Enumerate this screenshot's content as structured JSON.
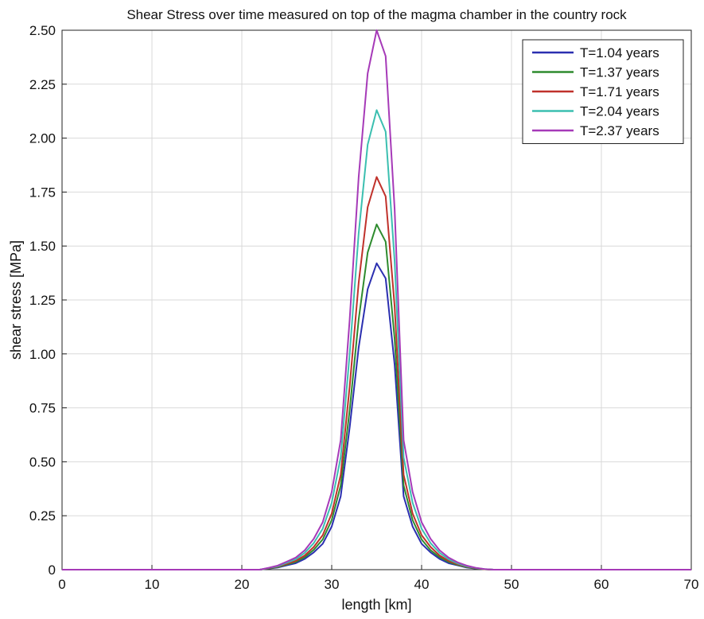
{
  "chart_data": {
    "type": "line",
    "title": "Shear Stress over time measured on top of the magma chamber in the country rock",
    "xlabel": "length [km]",
    "ylabel": "shear stress [MPa]",
    "xlim": [
      0,
      70
    ],
    "ylim": [
      0,
      2.5
    ],
    "xticks": [
      "0",
      "10",
      "20",
      "30",
      "40",
      "50",
      "60",
      "70"
    ],
    "yticks": [
      "0",
      "0.25",
      "0.50",
      "0.75",
      "1.00",
      "1.25",
      "1.50",
      "1.75",
      "2.00",
      "2.25",
      "2.50"
    ],
    "grid": true,
    "legend_position": "top-right",
    "x": [
      0,
      10,
      20,
      22,
      23,
      24,
      25,
      26,
      27,
      28,
      29,
      30,
      31,
      32,
      33,
      34,
      35,
      36,
      37,
      38,
      39,
      40,
      41,
      42,
      43,
      44,
      45,
      46,
      47,
      48,
      50,
      60,
      70
    ],
    "series": [
      {
        "name": "T=1.04 years",
        "color": "#2b2fb0",
        "values": [
          0,
          0,
          0,
          0,
          0.005,
          0.01,
          0.02,
          0.03,
          0.05,
          0.08,
          0.12,
          0.2,
          0.34,
          0.66,
          1.03,
          1.3,
          1.42,
          1.35,
          0.95,
          0.34,
          0.2,
          0.12,
          0.08,
          0.05,
          0.03,
          0.02,
          0.01,
          0.005,
          0.002,
          0,
          0,
          0,
          0
        ]
      },
      {
        "name": "T=1.37 years",
        "color": "#2e8b2e",
        "values": [
          0,
          0,
          0,
          0,
          0.006,
          0.012,
          0.024,
          0.036,
          0.058,
          0.092,
          0.14,
          0.23,
          0.39,
          0.74,
          1.16,
          1.47,
          1.6,
          1.52,
          1.07,
          0.39,
          0.23,
          0.14,
          0.09,
          0.058,
          0.036,
          0.022,
          0.012,
          0.006,
          0.002,
          0,
          0,
          0,
          0
        ]
      },
      {
        "name": "T=1.71 years",
        "color": "#c0312b",
        "values": [
          0,
          0,
          0,
          0,
          0.007,
          0.014,
          0.027,
          0.041,
          0.066,
          0.105,
          0.16,
          0.26,
          0.44,
          0.85,
          1.33,
          1.68,
          1.82,
          1.73,
          1.22,
          0.44,
          0.26,
          0.16,
          0.105,
          0.066,
          0.041,
          0.025,
          0.014,
          0.007,
          0.002,
          0,
          0,
          0,
          0
        ]
      },
      {
        "name": "T=2.04 years",
        "color": "#3bbfb0",
        "values": [
          0,
          0,
          0,
          0,
          0.008,
          0.016,
          0.032,
          0.048,
          0.078,
          0.123,
          0.19,
          0.31,
          0.52,
          1.0,
          1.56,
          1.97,
          2.13,
          2.03,
          1.43,
          0.52,
          0.31,
          0.19,
          0.123,
          0.078,
          0.048,
          0.029,
          0.016,
          0.008,
          0.003,
          0,
          0,
          0,
          0
        ]
      },
      {
        "name": "T=2.37 years",
        "color": "#a63ab8",
        "values": [
          0,
          0,
          0,
          0,
          0.009,
          0.019,
          0.037,
          0.056,
          0.09,
          0.143,
          0.22,
          0.36,
          0.6,
          1.16,
          1.82,
          2.3,
          2.5,
          2.38,
          1.67,
          0.6,
          0.36,
          0.22,
          0.143,
          0.09,
          0.056,
          0.034,
          0.019,
          0.009,
          0.003,
          0,
          0,
          0,
          0
        ]
      }
    ]
  }
}
